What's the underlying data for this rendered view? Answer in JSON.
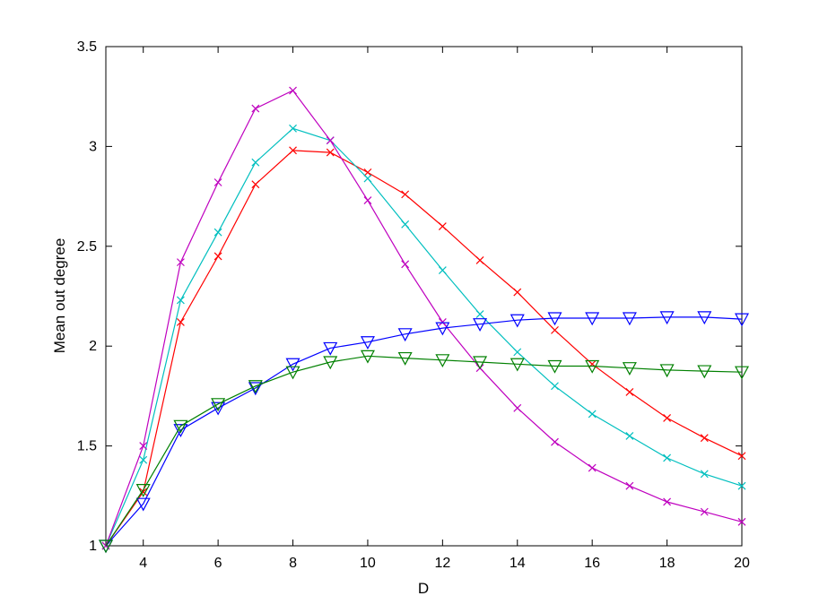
{
  "chart_data": {
    "type": "line",
    "title": "",
    "xlabel": "D",
    "ylabel": "Mean out degree",
    "xlim": [
      3,
      20
    ],
    "ylim": [
      1,
      3.5
    ],
    "xticks": [
      4,
      6,
      8,
      10,
      12,
      14,
      16,
      18,
      20
    ],
    "yticks": [
      1,
      1.5,
      2,
      2.5,
      3,
      3.5
    ],
    "xtick_labels": [
      "4",
      "6",
      "8",
      "10",
      "12",
      "14",
      "16",
      "18",
      "20"
    ],
    "ytick_labels": [
      "1",
      "1.5",
      "2",
      "2.5",
      "3",
      "3.5"
    ],
    "grid": false,
    "x": [
      3,
      4,
      5,
      6,
      7,
      8,
      9,
      10,
      11,
      12,
      13,
      14,
      15,
      16,
      17,
      18,
      19,
      20
    ],
    "series": [
      {
        "color": "#ff0000",
        "marker": "x",
        "values": [
          1.0,
          1.27,
          2.12,
          2.45,
          2.81,
          2.98,
          2.97,
          2.87,
          2.76,
          2.6,
          2.43,
          2.27,
          2.08,
          1.91,
          1.77,
          1.64,
          1.54,
          1.45
        ]
      },
      {
        "color": "#00bfbf",
        "marker": "x",
        "values": [
          1.0,
          1.43,
          2.23,
          2.57,
          2.92,
          3.09,
          3.03,
          2.84,
          2.61,
          2.38,
          2.16,
          1.97,
          1.8,
          1.66,
          1.55,
          1.44,
          1.36,
          1.3
        ]
      },
      {
        "color": "#bf00bf",
        "marker": "x",
        "values": [
          1.0,
          1.5,
          2.42,
          2.82,
          3.19,
          3.28,
          3.03,
          2.73,
          2.41,
          2.12,
          1.89,
          1.69,
          1.52,
          1.39,
          1.3,
          1.22,
          1.17,
          1.12
        ]
      },
      {
        "color": "#0000ff",
        "marker": "triangle-down",
        "values": [
          1.0,
          1.21,
          1.58,
          1.69,
          1.79,
          1.91,
          1.99,
          2.02,
          2.06,
          2.09,
          2.11,
          2.13,
          2.14,
          2.14,
          2.14,
          2.145,
          2.145,
          2.135
        ]
      },
      {
        "color": "#008000",
        "marker": "triangle-down",
        "values": [
          1.0,
          1.28,
          1.6,
          1.71,
          1.8,
          1.87,
          1.92,
          1.95,
          1.94,
          1.93,
          1.92,
          1.91,
          1.9,
          1.9,
          1.89,
          1.88,
          1.875,
          1.87
        ]
      }
    ]
  }
}
